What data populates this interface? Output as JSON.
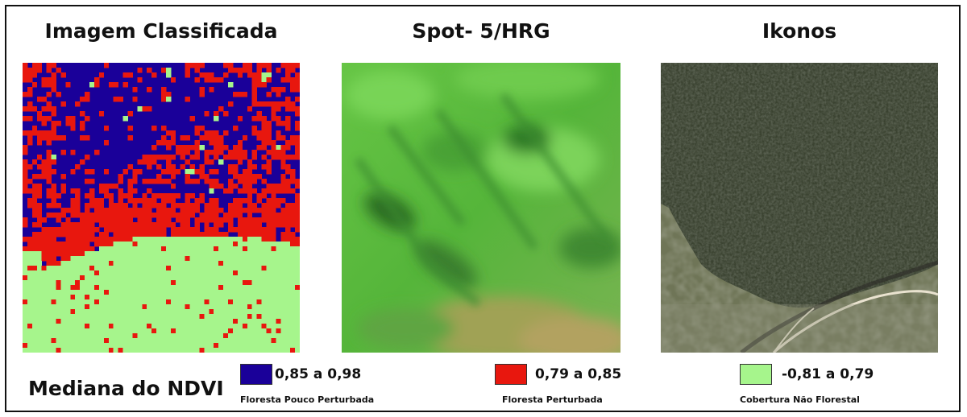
{
  "panels": [
    {
      "title": "Imagem Classificada"
    },
    {
      "title": "Spot- 5/HRG"
    },
    {
      "title": "Ikonos"
    }
  ],
  "legend": {
    "title": "Mediana do NDVI",
    "items": [
      {
        "range": "0,85 a 0,98",
        "label": "Floresta Pouco Perturbada",
        "color": "#1a0099"
      },
      {
        "range": "0,79 a 0,85",
        "label": "Floresta Perturbada",
        "color": "#e8170e"
      },
      {
        "range": "-0,81 a 0,79",
        "label": "Cobertura Não Florestal",
        "color": "#a6f58c"
      }
    ]
  }
}
